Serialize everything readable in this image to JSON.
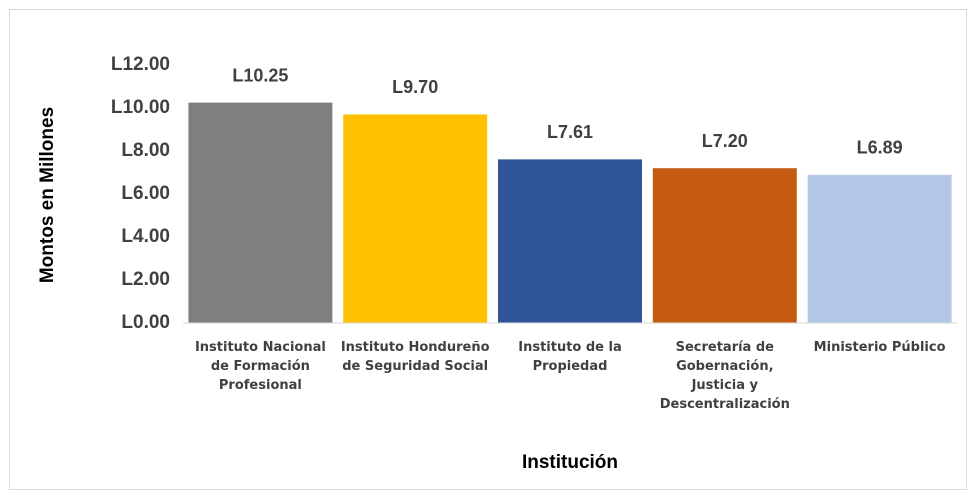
{
  "chart_data": {
    "type": "bar",
    "x_label": "Institución",
    "y_label": "Montos en Millones",
    "categories": [
      "Instituto Nacional de Formación Profesional",
      "Instituto Hondureño de Seguridad Social",
      "Instituto de la Propiedad",
      "Secretaría de Gobernación, Justicia y Descentralización",
      "Ministerio Público"
    ],
    "values": [
      10.25,
      9.7,
      7.61,
      7.2,
      6.89
    ],
    "value_labels": [
      "L10.25",
      "L9.70",
      "L7.61",
      "L7.20",
      "L6.89"
    ],
    "colors": [
      "#7f7f7f",
      "#ffc000",
      "#2f5597",
      "#c55a11",
      "#b4c7e7"
    ],
    "ylim": [
      0,
      12
    ],
    "yticks": [
      {
        "value": 0,
        "label": "L0.00"
      },
      {
        "value": 2,
        "label": "L2.00"
      },
      {
        "value": 4,
        "label": "L4.00"
      },
      {
        "value": 6,
        "label": "L6.00"
      },
      {
        "value": 8,
        "label": "L8.00"
      },
      {
        "value": 10,
        "label": "L10.00"
      },
      {
        "value": 12,
        "label": "L12.00"
      }
    ],
    "grid": false
  }
}
